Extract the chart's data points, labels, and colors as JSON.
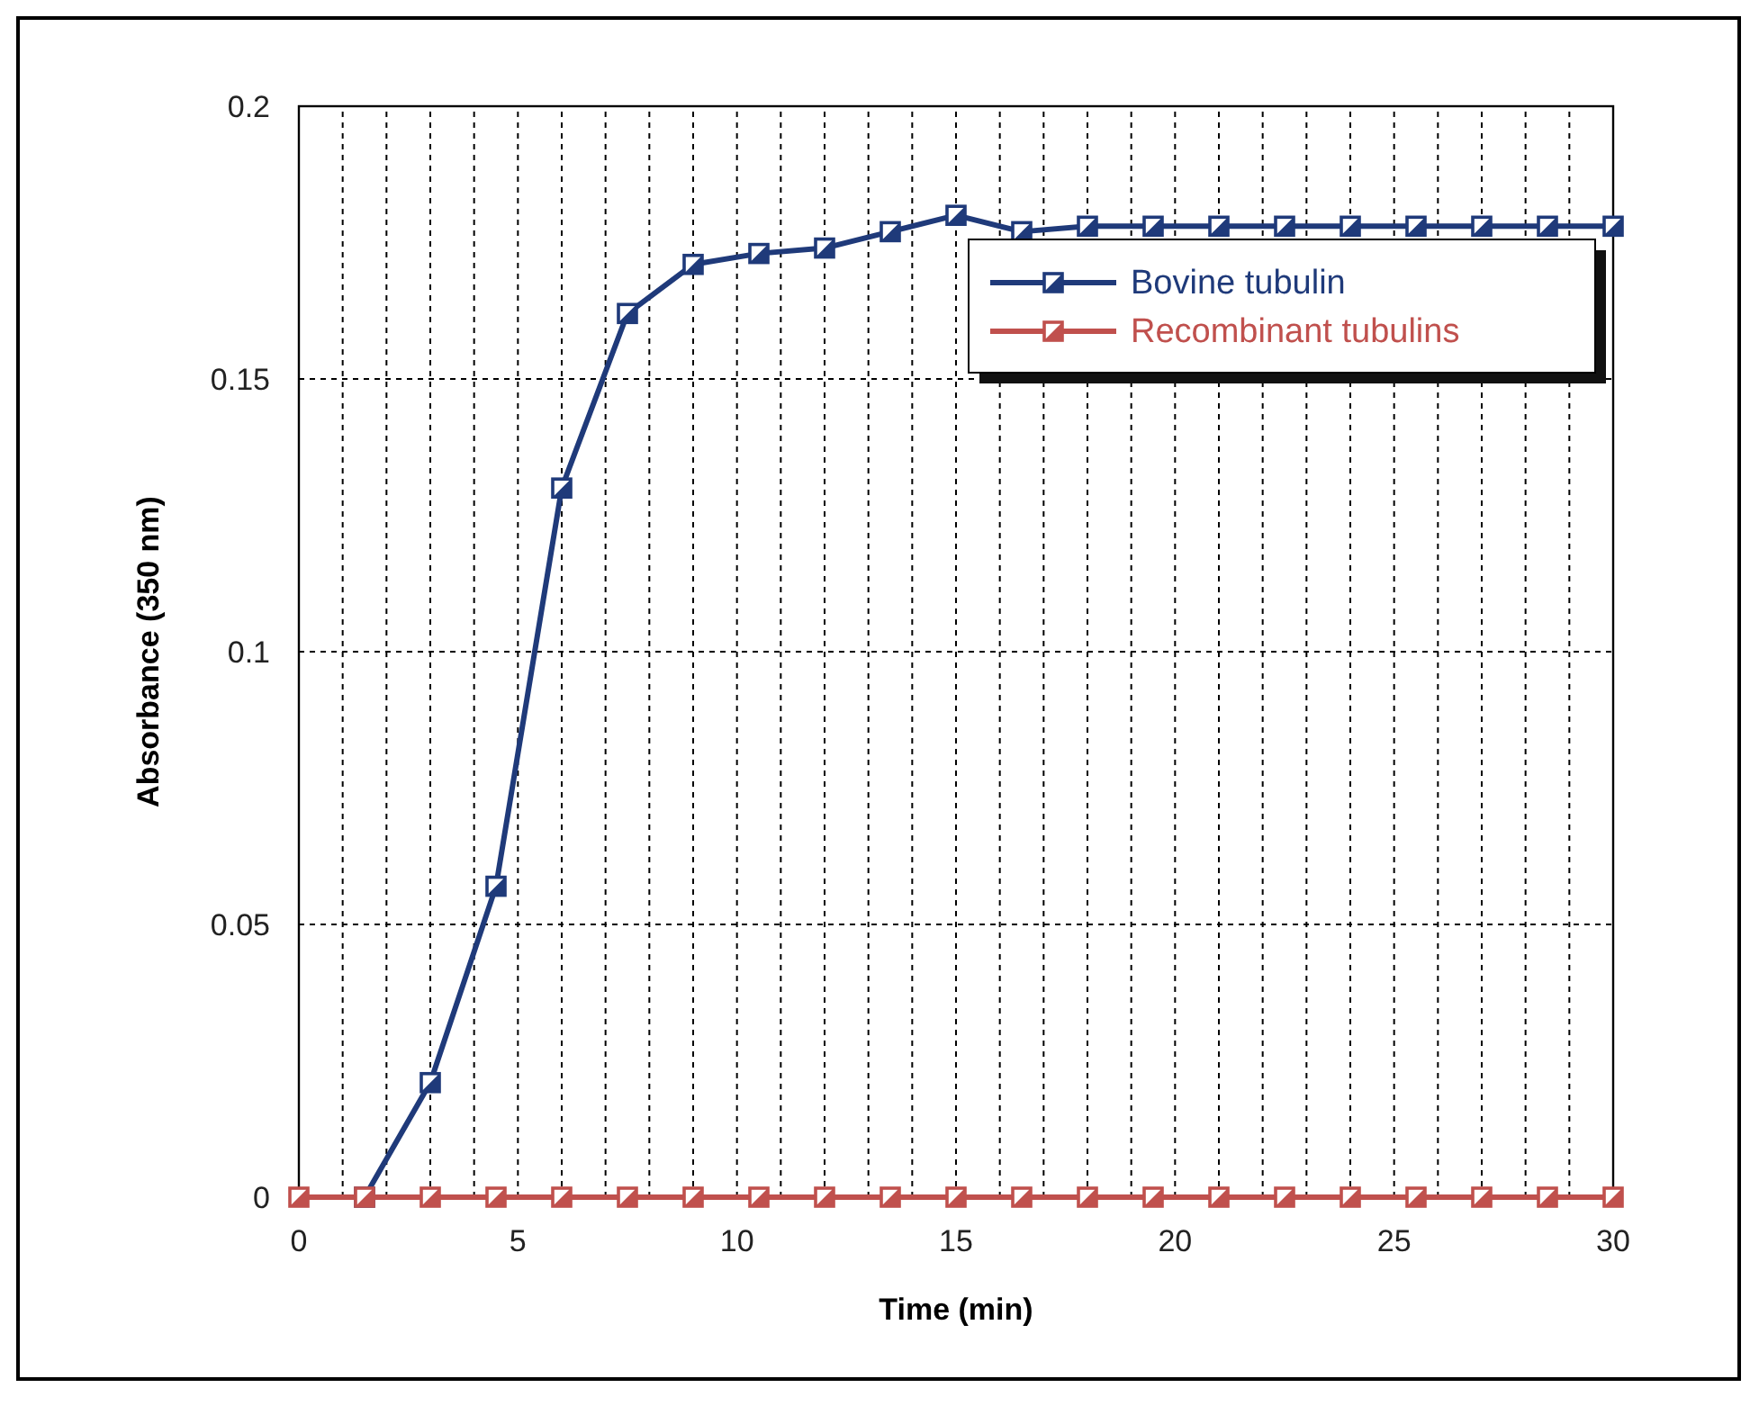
{
  "chart_data": {
    "type": "line",
    "xlabel": "Time (min)",
    "ylabel": "Absorbance (350 nm)",
    "x": [
      0,
      1.5,
      3,
      4.5,
      6,
      7.5,
      9,
      10.5,
      12,
      13.5,
      15,
      16.5,
      18,
      19.5,
      21,
      22.5,
      24,
      25.5,
      27,
      28.5,
      30
    ],
    "series": [
      {
        "name": "Bovine tubulin",
        "color": "#1f3a7a",
        "values": [
          null,
          0,
          0.021,
          0.057,
          0.13,
          0.162,
          0.171,
          0.173,
          0.174,
          0.177,
          0.18,
          0.177,
          0.178,
          0.178,
          0.178,
          0.178,
          0.178,
          0.178,
          0.178,
          0.178,
          0.178
        ]
      },
      {
        "name": "Recombinant tubulins",
        "color": "#c0504d",
        "values": [
          0,
          0,
          0,
          0,
          0,
          0,
          0,
          0,
          0,
          0,
          0,
          0,
          0,
          0,
          0,
          0,
          0,
          0,
          0,
          0,
          0
        ]
      }
    ],
    "xlim": [
      0,
      30
    ],
    "ylim": [
      0,
      0.2
    ],
    "xticks": [
      0,
      {
        "value": 1,
        "label": null
      },
      {
        "value": 2,
        "label": null
      },
      {
        "value": 3,
        "label": null
      },
      {
        "value": 4,
        "label": null
      },
      5,
      {
        "value": 6,
        "label": null
      },
      {
        "value": 7,
        "label": null
      },
      {
        "value": 8,
        "label": null
      },
      {
        "value": 9,
        "label": null
      },
      10,
      {
        "value": 11,
        "label": null
      },
      {
        "value": 12,
        "label": null
      },
      {
        "value": 13,
        "label": null
      },
      {
        "value": 14,
        "label": null
      },
      15,
      {
        "value": 16,
        "label": null
      },
      {
        "value": 17,
        "label": null
      },
      {
        "value": 18,
        "label": null
      },
      {
        "value": 19,
        "label": null
      },
      20,
      {
        "value": 21,
        "label": null
      },
      {
        "value": 22,
        "label": null
      },
      {
        "value": 23,
        "label": null
      },
      {
        "value": 24,
        "label": null
      },
      25,
      {
        "value": 26,
        "label": null
      },
      {
        "value": 27,
        "label": null
      },
      {
        "value": 28,
        "label": null
      },
      {
        "value": 29,
        "label": null
      },
      30
    ],
    "yticks": [
      0,
      0.05,
      0.1,
      0.15,
      0.2
    ],
    "grid": true,
    "legend": "top right",
    "marker": "square",
    "line_style": "solid"
  }
}
